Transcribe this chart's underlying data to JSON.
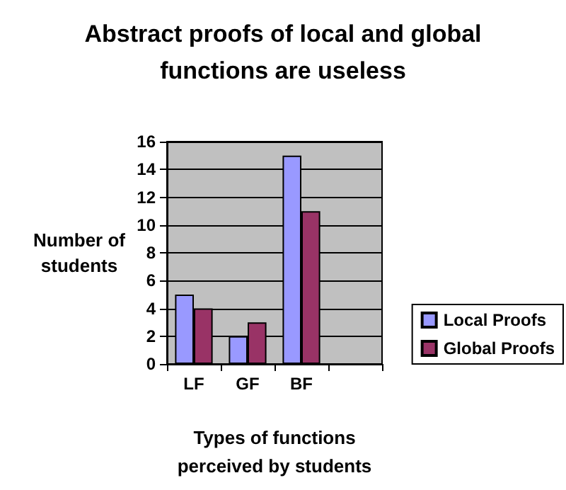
{
  "chart_data": {
    "type": "bar",
    "title": "Abstract proofs of local and global\nfunctions are useless",
    "xlabel": "Types of functions\nperceived by students",
    "ylabel": "Number of\nstudents",
    "categories": [
      "LF",
      "GF",
      "BF",
      null
    ],
    "series": [
      {
        "name": "Local Proofs",
        "color": "#9999ff",
        "values": [
          5,
          2,
          15,
          null
        ]
      },
      {
        "name": "Global Proofs",
        "color": "#993366",
        "values": [
          4,
          3,
          11,
          null
        ]
      }
    ],
    "ylim": [
      0,
      16
    ],
    "yticks": [
      0,
      2,
      4,
      6,
      8,
      10,
      12,
      14,
      16
    ],
    "grid": "y",
    "legend": "right"
  }
}
